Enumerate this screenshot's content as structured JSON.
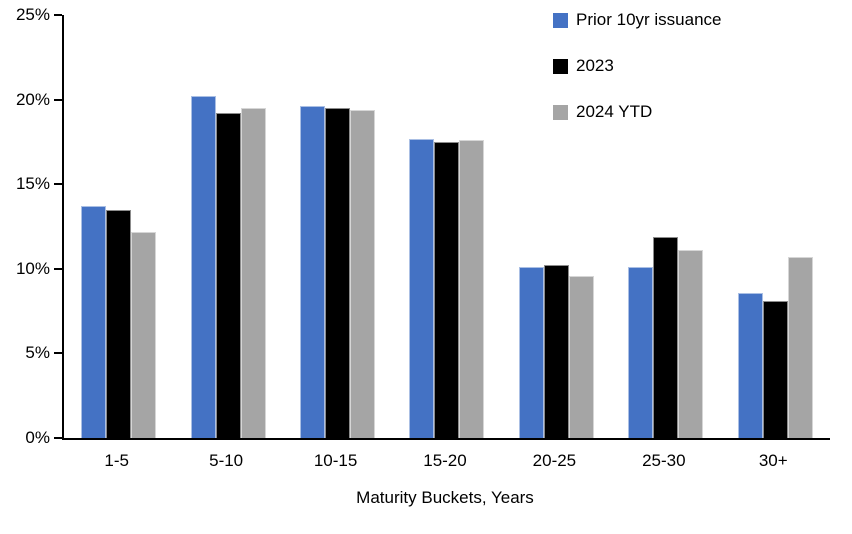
{
  "chart_data": {
    "type": "bar",
    "title": "",
    "xlabel": "Maturity Buckets, Years",
    "ylabel": "",
    "ylim": [
      0,
      25
    ],
    "ytick_step": 5,
    "ytick_labels": [
      "0%",
      "5%",
      "10%",
      "15%",
      "20%",
      "25%"
    ],
    "grid": false,
    "legend_position": "top-right",
    "categories": [
      "1-5",
      "5-10",
      "10-15",
      "15-20",
      "20-25",
      "25-30",
      "30+"
    ],
    "series": [
      {
        "name": "Prior 10yr issuance",
        "color": "#4472C4",
        "values": [
          13.7,
          20.2,
          19.6,
          17.7,
          10.1,
          10.1,
          8.6
        ]
      },
      {
        "name": "2023",
        "color": "#000000",
        "values": [
          13.5,
          19.2,
          19.5,
          17.5,
          10.2,
          11.9,
          8.1
        ]
      },
      {
        "name": "2024 YTD",
        "color": "#A5A5A5",
        "values": [
          12.2,
          19.5,
          19.4,
          17.6,
          9.6,
          11.1,
          10.7
        ]
      }
    ],
    "axis_color": "#000000",
    "background_color": "#FFFFFF"
  }
}
